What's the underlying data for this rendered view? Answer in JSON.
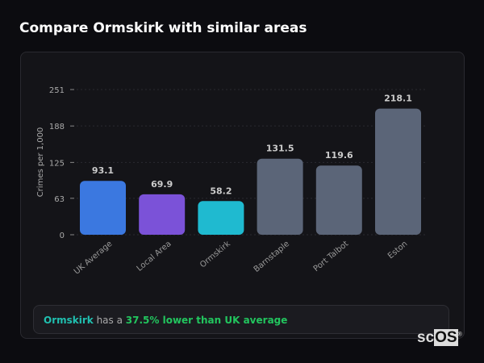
{
  "title": "Compare Ormskirk with similar areas",
  "chart_data": {
    "type": "bar",
    "title": "",
    "xlabel": "",
    "ylabel": "Crimes per 1,000",
    "ylim": [
      0,
      251
    ],
    "yticks": [
      0,
      63,
      125,
      188,
      251
    ],
    "grid": true,
    "categories": [
      "UK Average",
      "Local Area",
      "Ormskirk",
      "Barnstaple",
      "Port Talbot",
      "Eston"
    ],
    "values": [
      93.1,
      69.9,
      58.2,
      131.5,
      119.6,
      218.1
    ],
    "colors": [
      "#3b78e0",
      "#7b52d8",
      "#1fbad0",
      "#5b6578",
      "#5b6578",
      "#5b6578"
    ]
  },
  "summary": {
    "area": "Ormskirk",
    "middle": " has a ",
    "comparison": "37.5% lower than UK average"
  },
  "logo": {
    "text": "scOS"
  }
}
